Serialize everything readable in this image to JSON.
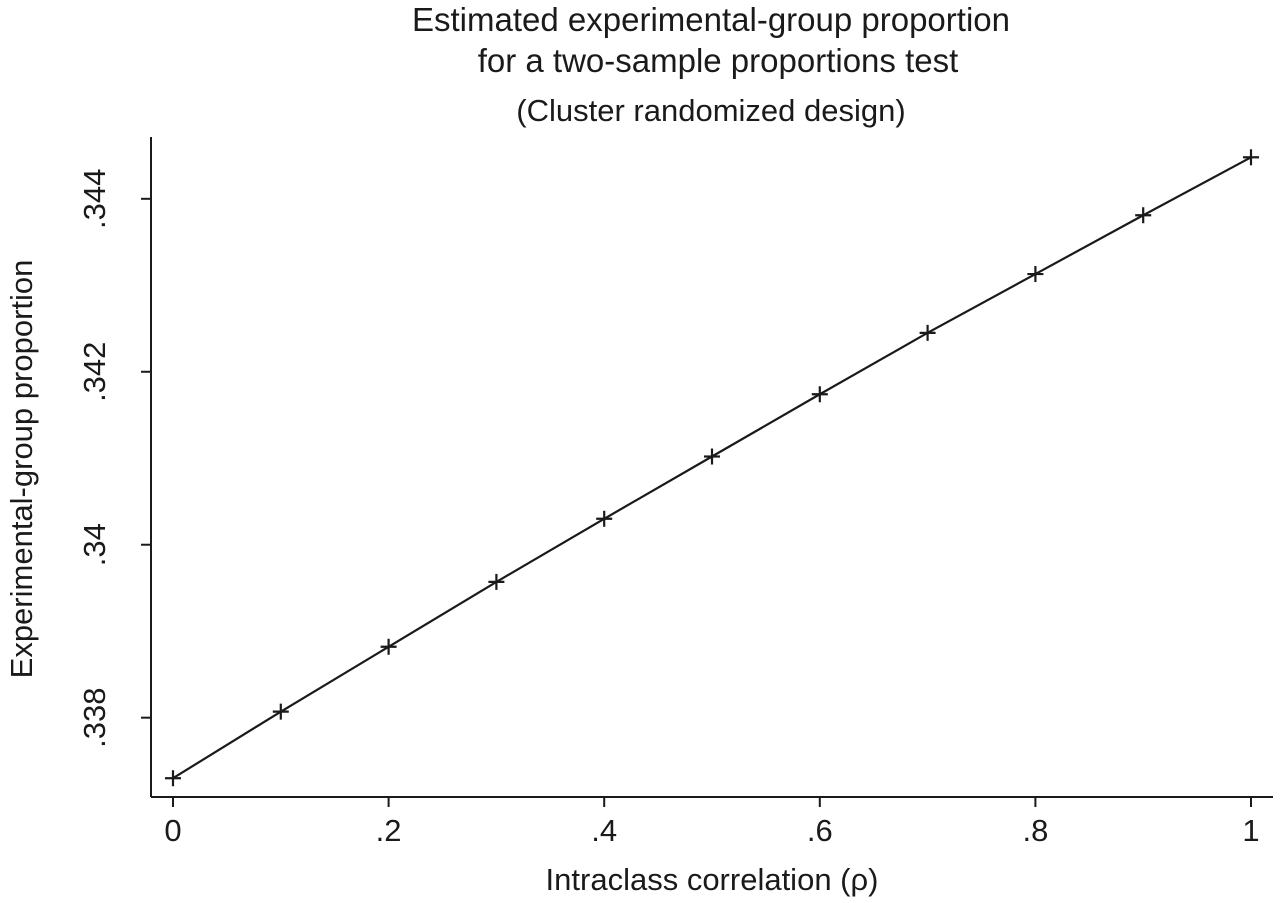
{
  "chart_data": {
    "type": "line",
    "title": [
      "Estimated experimental-group proportion",
      "for a two-sample proportions test"
    ],
    "subtitle": "(Cluster randomized design)",
    "xlabel": "Intraclass correlation (ρ)",
    "ylabel": "Experimental-group proportion",
    "x": [
      0,
      0.1,
      0.2,
      0.3,
      0.4,
      0.5,
      0.6,
      0.7,
      0.8,
      0.9,
      1.0
    ],
    "y": [
      0.3373,
      0.33807,
      0.33882,
      0.33957,
      0.3403,
      0.34102,
      0.34174,
      0.34245,
      0.34313,
      0.34381,
      0.34448
    ],
    "xticks": [
      {
        "value": 0,
        "label": "0"
      },
      {
        "value": 0.2,
        "label": ".2"
      },
      {
        "value": 0.4,
        "label": ".4"
      },
      {
        "value": 0.6,
        "label": ".6"
      },
      {
        "value": 0.8,
        "label": ".8"
      },
      {
        "value": 1.0,
        "label": "1"
      }
    ],
    "yticks": [
      {
        "value": 0.338,
        "label": ".338"
      },
      {
        "value": 0.34,
        "label": ".34"
      },
      {
        "value": 0.342,
        "label": ".342"
      },
      {
        "value": 0.344,
        "label": ".344"
      }
    ],
    "xlim": [
      -0.02,
      1.02
    ],
    "ylim": [
      0.33721,
      0.34468
    ],
    "marker": "plus",
    "grid": false,
    "line_color": "#1a1a1a"
  }
}
